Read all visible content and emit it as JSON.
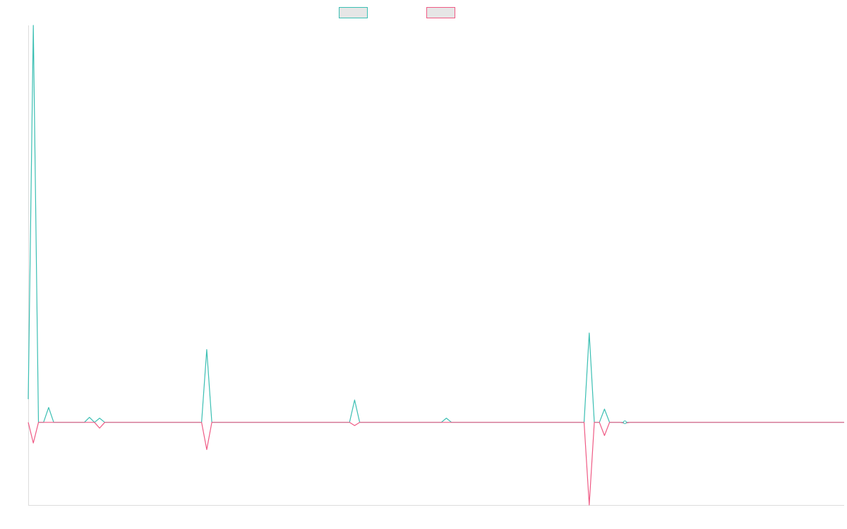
{
  "chart_data": {
    "type": "line",
    "title": "",
    "xlabel": "",
    "ylabel": "",
    "grid": false,
    "legend_position": "top-center",
    "ylim": [
      -1,
      4.8
    ],
    "series": [
      {
        "color": "#3bbfb3",
        "legend_fill": "#e6e6e6",
        "points": [
          [
            0,
            0.28
          ],
          [
            1,
            4.8
          ],
          [
            2,
            0
          ],
          [
            3,
            0
          ],
          [
            4,
            0.18
          ],
          [
            5,
            0
          ],
          [
            11,
            0
          ],
          [
            12,
            0.06
          ],
          [
            13,
            0
          ],
          [
            14,
            0.05
          ],
          [
            15,
            0
          ],
          [
            34,
            0
          ],
          [
            35,
            0.88
          ],
          [
            36,
            0
          ],
          [
            63,
            0
          ],
          [
            64,
            0.27
          ],
          [
            65,
            0
          ],
          [
            81,
            0
          ],
          [
            82,
            0.05
          ],
          [
            83,
            0
          ],
          [
            109,
            0
          ],
          [
            110,
            1.08
          ],
          [
            111,
            0
          ],
          [
            112,
            0
          ],
          [
            113,
            0.16
          ],
          [
            114,
            0
          ],
          [
            117,
            0
          ],
          [
            160,
            0
          ]
        ]
      },
      {
        "color": "#ef5b85",
        "legend_fill": "#e6e6e6",
        "points": [
          [
            0,
            0
          ],
          [
            1,
            -0.25
          ],
          [
            2,
            0
          ],
          [
            13,
            0
          ],
          [
            14,
            -0.07
          ],
          [
            15,
            0
          ],
          [
            34,
            0
          ],
          [
            35,
            -0.33
          ],
          [
            36,
            0
          ],
          [
            63,
            0
          ],
          [
            64,
            -0.04
          ],
          [
            65,
            0
          ],
          [
            109,
            0
          ],
          [
            110,
            -1.0
          ],
          [
            111,
            0
          ],
          [
            112,
            0
          ],
          [
            113,
            -0.16
          ],
          [
            114,
            0
          ],
          [
            116,
            0
          ],
          [
            117,
            -0.01
          ],
          [
            118,
            0
          ],
          [
            160,
            0
          ]
        ]
      }
    ],
    "markers": [
      {
        "x": 117,
        "y": 0
      }
    ]
  }
}
